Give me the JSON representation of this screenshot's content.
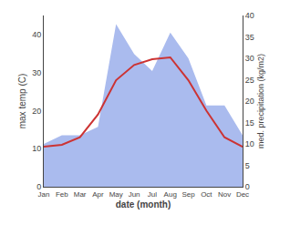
{
  "chart_data": {
    "type": "line",
    "categories": [
      "Jan",
      "Feb",
      "Mar",
      "Apr",
      "May",
      "Jun",
      "Jul",
      "Aug",
      "Sep",
      "Oct",
      "Nov",
      "Dec"
    ],
    "xlabel": "date (month)",
    "ylabel": "max temp (C)",
    "y2label": "med. precipitation (kg/m2)",
    "series": [
      {
        "type": "area",
        "axis": "y2",
        "color": "#aabbee",
        "values": [
          10,
          12,
          12,
          14,
          38,
          31,
          27,
          36,
          30,
          19,
          19,
          12
        ]
      },
      {
        "type": "line",
        "color": "#cc3333",
        "values": [
          10.5,
          11.0,
          13.0,
          19.0,
          28.0,
          32.0,
          33.5,
          34.0,
          28.0,
          20.0,
          13.0,
          10.5
        ]
      }
    ],
    "ylim": [
      0,
      45
    ],
    "yticks": [
      0,
      10,
      20,
      30,
      40
    ],
    "y2lim": [
      0,
      40
    ],
    "y2ticks": [
      0,
      5,
      10,
      15,
      20,
      25,
      30,
      35,
      40
    ],
    "grid": false
  }
}
